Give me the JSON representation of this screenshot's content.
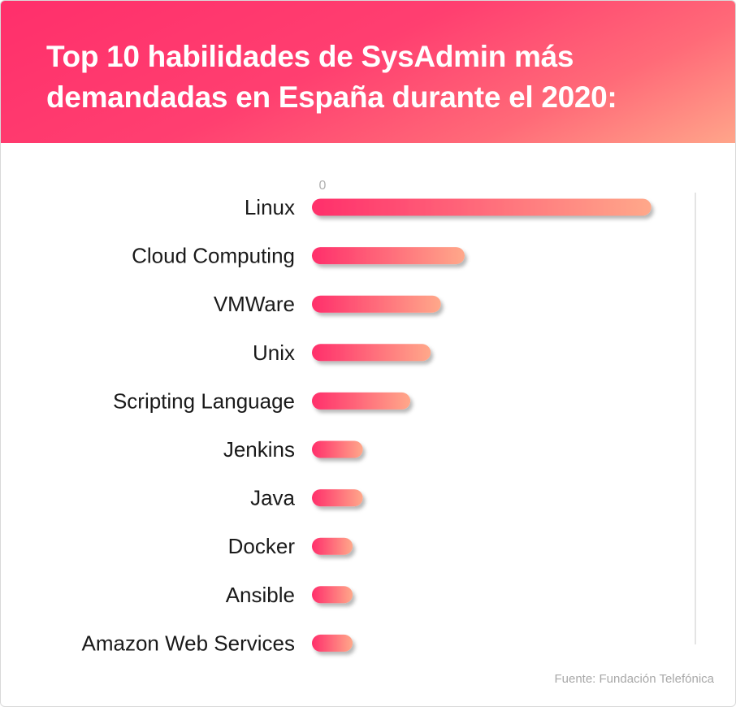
{
  "header": {
    "title": "Top 10 habilidades de SysAdmin más demandadas en España durante el 2020:"
  },
  "footer": {
    "source": "Fuente: Fundación Telefónica"
  },
  "colors": {
    "bar_start": "#ff2f6b",
    "bar_end": "#ffa88a",
    "label_text": "#1a1a1a",
    "axis_line": "#dcdcdc",
    "tick_text": "#b0b0b0"
  },
  "chart_data": {
    "type": "bar",
    "orientation": "horizontal",
    "title": "Top 10 habilidades de SysAdmin más demandadas en España durante el 2020:",
    "xlabel": "",
    "ylabel": "",
    "tick_labels": [
      "0"
    ],
    "categories": [
      "Linux",
      "Cloud Computing",
      "VMWare",
      "Unix",
      "Scripting Language",
      "Jenkins",
      "Java",
      "Docker",
      "Ansible",
      "Amazon Web Services"
    ],
    "values": [
      100,
      45,
      38,
      35,
      29,
      15,
      15,
      12,
      12,
      12
    ],
    "xlim": [
      0,
      113
    ],
    "grid": false,
    "legend": "none"
  }
}
